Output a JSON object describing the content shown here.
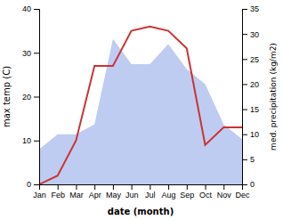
{
  "chart_data": {
    "type": "line",
    "categories": [
      "Jan",
      "Feb",
      "Mar",
      "Apr",
      "May",
      "Jun",
      "Jul",
      "Aug",
      "Sep",
      "Oct",
      "Nov",
      "Dec"
    ],
    "series": [
      {
        "type": "area",
        "color": "#aabbee",
        "axis": "y2",
        "values": [
          7,
          10,
          10,
          12,
          29,
          24,
          24,
          28,
          23,
          20,
          12,
          9
        ]
      },
      {
        "type": "line",
        "color": "#cc3333",
        "values": [
          0,
          2,
          10,
          27,
          27,
          35,
          36,
          35,
          31,
          9,
          13,
          13
        ]
      }
    ],
    "xlabel": "date (month)",
    "ylabel": "max temp (C)",
    "y2label": "med. precipitation (kg/m2)",
    "ylim": [
      0,
      40
    ],
    "yticks": [
      0,
      10,
      20,
      30,
      40
    ],
    "y2lim": [
      0,
      35
    ],
    "y2ticks": [
      0,
      5,
      10,
      15,
      20,
      25,
      30,
      35
    ]
  }
}
